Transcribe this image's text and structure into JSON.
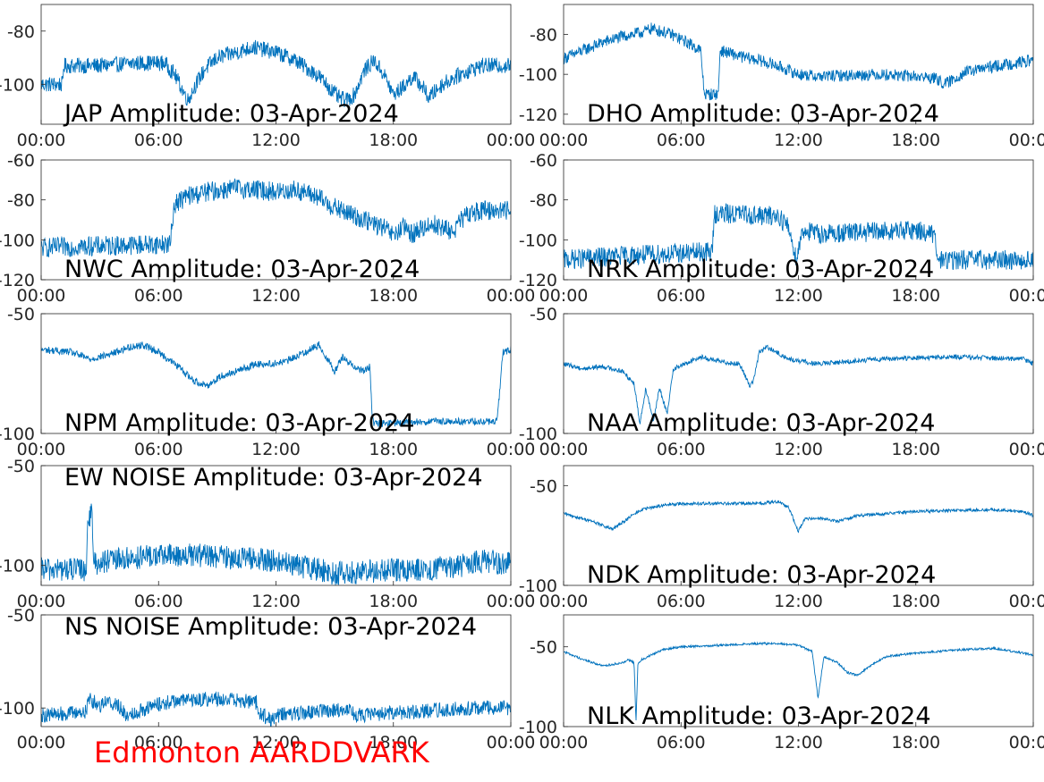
{
  "footer": "Edmonton AARDDVARK",
  "colors": {
    "trace": "#0072bd",
    "axis": "#262626",
    "title": "#000000",
    "footer": "#ff0000"
  },
  "chart_data": [
    {
      "type": "line",
      "title": "JAP Amplitude: 03-Apr-2024",
      "xticks": [
        "00:00",
        "06:00",
        "12:00",
        "18:00",
        "00:00"
      ],
      "xlim": [
        0,
        24
      ],
      "ylim": [
        -115,
        -70
      ],
      "yticks": [
        -80,
        -100
      ],
      "ytick_labels": [
        "-80",
        "-100"
      ],
      "series": [
        {
          "noise": 3,
          "x": [
            0,
            1.1,
            1.15,
            3,
            5,
            6.3,
            6.8,
            7.5,
            7.9,
            8.4,
            9,
            10,
            10.8,
            12,
            13,
            14.2,
            15.2,
            15.6,
            16,
            16.5,
            17,
            17.5,
            18,
            18.5,
            19,
            19.5,
            19.8,
            20.5,
            21.5,
            22.5,
            24
          ],
          "y": [
            -100,
            -100,
            -93,
            -93,
            -92,
            -92,
            -96,
            -106,
            -100,
            -94,
            -90,
            -88,
            -86,
            -88,
            -91,
            -97,
            -105,
            -106,
            -104,
            -95,
            -91,
            -96,
            -104,
            -101,
            -97,
            -101,
            -105,
            -100,
            -96,
            -93,
            -93
          ]
        }
      ]
    },
    {
      "type": "line",
      "title": "DHO Amplitude: 03-Apr-2024",
      "xticks": [
        "00:00",
        "06:00",
        "12:00",
        "18:00",
        "00:00"
      ],
      "xlim": [
        0,
        24
      ],
      "ylim": [
        -125,
        -65
      ],
      "yticks": [
        -80,
        -100,
        -120
      ],
      "ytick_labels": [
        "-80",
        "-100",
        "-120"
      ],
      "series": [
        {
          "noise": 3,
          "x": [
            0,
            1,
            2,
            3,
            4,
            4.5,
            5.5,
            6.5,
            7,
            7.15,
            7.2,
            7.9,
            8,
            9,
            10,
            11,
            12,
            13,
            16,
            18,
            19,
            19.5,
            20.5,
            22,
            24
          ],
          "y": [
            -92,
            -88,
            -84,
            -81,
            -79,
            -77,
            -80,
            -85,
            -88,
            -105,
            -110,
            -110,
            -88,
            -91,
            -93,
            -96,
            -100,
            -101,
            -100,
            -101,
            -102,
            -105,
            -99,
            -96,
            -93
          ]
        }
      ]
    },
    {
      "type": "line",
      "title": "NWC Amplitude: 03-Apr-2024",
      "xticks": [
        "00:00",
        "06:00",
        "12:00",
        "18:00",
        "00:00"
      ],
      "xlim": [
        0,
        24
      ],
      "ylim": [
        -120,
        -60
      ],
      "yticks": [
        -60,
        -80,
        -100,
        -120
      ],
      "ytick_labels": [
        "-60",
        "-80",
        "-100",
        "-120"
      ],
      "series": [
        {
          "noise": 5,
          "x": [
            0,
            6.6,
            6.8,
            7.5,
            8.5,
            10,
            11,
            12,
            13,
            14,
            15,
            16,
            17,
            17.5,
            18,
            18.5,
            19,
            19.5,
            20,
            20.5,
            21,
            21.5,
            22,
            23,
            24
          ],
          "y": [
            -104,
            -102,
            -82,
            -78,
            -76,
            -74,
            -75,
            -76,
            -75,
            -78,
            -84,
            -88,
            -92,
            -94,
            -98,
            -94,
            -97,
            -94,
            -92,
            -94,
            -96,
            -90,
            -86,
            -85,
            -85
          ]
        }
      ]
    },
    {
      "type": "line",
      "title": "NRK Amplitude: 03-Apr-2024",
      "xticks": [
        "00:00",
        "06:00",
        "12:00",
        "18:00",
        "00:00"
      ],
      "xlim": [
        0,
        24
      ],
      "ylim": [
        -120,
        -60
      ],
      "yticks": [
        -60,
        -80,
        -100,
        -120
      ],
      "ytick_labels": [
        "-60",
        "-80",
        "-100",
        "-120"
      ],
      "series": [
        {
          "noise": 5,
          "x": [
            0,
            3,
            7.6,
            7.7,
            9,
            10,
            11,
            11.5,
            11.9,
            12.2,
            13,
            16,
            18,
            18.8,
            19,
            19.1,
            21,
            24
          ],
          "y": [
            -110,
            -108,
            -106,
            -87,
            -87,
            -88,
            -88,
            -94,
            -110,
            -95,
            -97,
            -96,
            -95,
            -97,
            -100,
            -110,
            -110,
            -110
          ]
        }
      ]
    },
    {
      "type": "line",
      "title": "NPM Amplitude: 03-Apr-2024",
      "xticks": [
        "00:00",
        "06:00",
        "12:00",
        "18:00",
        "00:00"
      ],
      "xlim": [
        0,
        24
      ],
      "ylim": [
        -100,
        -50
      ],
      "yticks": [
        -50,
        -100
      ],
      "ytick_labels": [
        "-50",
        "-100"
      ],
      "series": [
        {
          "noise": 1.5,
          "x": [
            0,
            1.5,
            2.5,
            3.5,
            4.5,
            5.2,
            6,
            7,
            7.8,
            8.5,
            9.2,
            10,
            11,
            11.7,
            12.5,
            13.5,
            14.2,
            15,
            15.4,
            15.8,
            16.5,
            16.8,
            16.9,
            17,
            20,
            23.3,
            23.6,
            24
          ],
          "y": [
            -65,
            -66,
            -69,
            -67,
            -64,
            -63,
            -66,
            -72,
            -78,
            -80,
            -76,
            -74,
            -71,
            -71,
            -70,
            -66,
            -63,
            -74,
            -68,
            -71,
            -74,
            -72,
            -91,
            -96,
            -95,
            -95,
            -66,
            -65
          ]
        }
      ]
    },
    {
      "type": "line",
      "title": "NAA Amplitude: 03-Apr-2024",
      "xticks": [
        "00:00",
        "06:00",
        "12:00",
        "18:00",
        "00:00"
      ],
      "xlim": [
        0,
        24
      ],
      "ylim": [
        -100,
        -50
      ],
      "yticks": [
        -50,
        -100
      ],
      "ytick_labels": [
        "-50",
        "-100"
      ],
      "series": [
        {
          "noise": 1,
          "x": [
            0,
            1,
            2,
            3,
            3.6,
            3.9,
            4.2,
            4.6,
            4.9,
            5.3,
            5.6,
            6.2,
            7,
            8,
            9,
            9.5,
            9.7,
            10,
            10.4,
            11.5,
            13,
            16,
            20,
            23.5,
            24
          ],
          "y": [
            -71,
            -73,
            -72,
            -74,
            -79,
            -96,
            -81,
            -95,
            -81,
            -92,
            -73,
            -71,
            -68,
            -70,
            -71,
            -80,
            -78,
            -66,
            -64,
            -69,
            -71,
            -69,
            -68,
            -69,
            -71
          ]
        }
      ]
    },
    {
      "type": "line",
      "title": "EW NOISE Amplitude: 03-Apr-2024",
      "xticks": [
        "00:00",
        "06:00",
        "12:00",
        "18:00",
        "00:00"
      ],
      "xlim": [
        0,
        24
      ],
      "ylim": [
        -110,
        -50
      ],
      "yticks": [
        -50,
        -100
      ],
      "ytick_labels": [
        "-50",
        "-100"
      ],
      "series": [
        {
          "noise": 6,
          "x": [
            0,
            2.3,
            2.4,
            2.6,
            2.7,
            4,
            6,
            8,
            10,
            12,
            13,
            15,
            17,
            19,
            21,
            22.5,
            24
          ],
          "y": [
            -102,
            -102,
            -75,
            -75,
            -99,
            -97,
            -95,
            -95,
            -96,
            -98,
            -100,
            -104,
            -103,
            -102,
            -101,
            -98,
            -99
          ]
        }
      ]
    },
    {
      "type": "line",
      "title": "NDK Amplitude: 03-Apr-2024",
      "xticks": [
        "00:00",
        "06:00",
        "12:00",
        "18:00",
        "00:00"
      ],
      "xlim": [
        0,
        24
      ],
      "ylim": [
        -100,
        -40
      ],
      "yticks": [
        -50,
        -100
      ],
      "ytick_labels": [
        "-50",
        "-100"
      ],
      "series": [
        {
          "noise": 0.8,
          "x": [
            0,
            1.5,
            2,
            2.5,
            3.5,
            4,
            5,
            6,
            8,
            10,
            11,
            11.5,
            11.8,
            12,
            12.3,
            13,
            14,
            15,
            18,
            22,
            23.5,
            24
          ],
          "y": [
            -64,
            -68,
            -70,
            -72,
            -65,
            -62,
            -60,
            -59,
            -59,
            -59,
            -58,
            -61,
            -68,
            -73,
            -67,
            -66,
            -68,
            -65,
            -63,
            -62,
            -63,
            -65
          ]
        }
      ]
    },
    {
      "type": "line",
      "title": "NS NOISE Amplitude: 03-Apr-2024",
      "xticks": [
        "00:00",
        "06:00",
        "12:00",
        "18:00",
        "00:00"
      ],
      "xlim": [
        0,
        24
      ],
      "ylim": [
        -110,
        -50
      ],
      "yticks": [
        -50,
        -100
      ],
      "ytick_labels": [
        "-50",
        "-100"
      ],
      "series": [
        {
          "noise": 4,
          "x": [
            0,
            2.3,
            2.5,
            2.6,
            3,
            3.2,
            4,
            4.3,
            6,
            7,
            9,
            11,
            11.2,
            11.8,
            12,
            14,
            15,
            15.8,
            16,
            22,
            24
          ],
          "y": [
            -104,
            -102,
            -93,
            -96,
            -99,
            -96,
            -99,
            -104,
            -98,
            -96,
            -95,
            -97,
            -103,
            -107,
            -104,
            -102,
            -101,
            -101,
            -104,
            -100,
            -100
          ]
        }
      ]
    },
    {
      "type": "line",
      "title": "NLK Amplitude: 03-Apr-2024",
      "xticks": [
        "00:00",
        "06:00",
        "12:00",
        "18:00",
        "00:00"
      ],
      "xlim": [
        0,
        24
      ],
      "ylim": [
        -100,
        -30
      ],
      "yticks": [
        -50,
        -100
      ],
      "ytick_labels": [
        "-50",
        "-100"
      ],
      "series": [
        {
          "noise": 0.7,
          "x": [
            0,
            1,
            2,
            3,
            3.3,
            3.6,
            3.7,
            3.8,
            4,
            5,
            6,
            8,
            10,
            11,
            12,
            12.7,
            13,
            13.3,
            14,
            14.5,
            15,
            15.8,
            16.5,
            18,
            20,
            22,
            24
          ],
          "y": [
            -53,
            -58,
            -62,
            -60,
            -58,
            -60,
            -97,
            -60,
            -58,
            -52,
            -50,
            -49,
            -48,
            -48,
            -49,
            -53,
            -82,
            -56,
            -60,
            -66,
            -68,
            -61,
            -56,
            -54,
            -52,
            -51,
            -55
          ]
        }
      ]
    }
  ]
}
